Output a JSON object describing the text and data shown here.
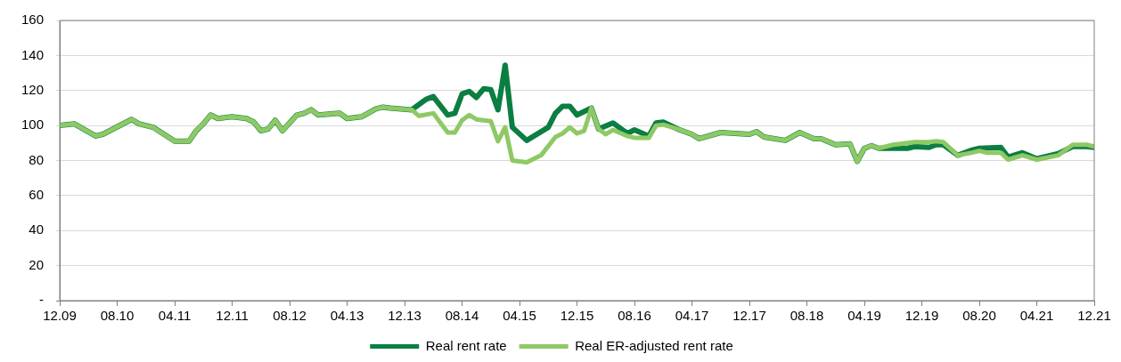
{
  "chart_data": {
    "type": "line",
    "xlim": [
      "2009-12",
      "2021-12"
    ],
    "xticks": [
      {
        "value": "2009-12",
        "label": "12.09"
      },
      {
        "value": "2010-08",
        "label": "08.10"
      },
      {
        "value": "2011-04",
        "label": "04.11"
      },
      {
        "value": "2011-12",
        "label": "12.11"
      },
      {
        "value": "2012-08",
        "label": "08.12"
      },
      {
        "value": "2013-04",
        "label": "04.13"
      },
      {
        "value": "2013-12",
        "label": "12.13"
      },
      {
        "value": "2014-08",
        "label": "08.14"
      },
      {
        "value": "2015-04",
        "label": "04.15"
      },
      {
        "value": "2015-12",
        "label": "12.15"
      },
      {
        "value": "2016-08",
        "label": "08.16"
      },
      {
        "value": "2017-04",
        "label": "04.17"
      },
      {
        "value": "2017-12",
        "label": "12.17"
      },
      {
        "value": "2018-08",
        "label": "08.18"
      },
      {
        "value": "2019-04",
        "label": "04.19"
      },
      {
        "value": "2019-12",
        "label": "12.19"
      },
      {
        "value": "2020-08",
        "label": "08.20"
      },
      {
        "value": "2021-04",
        "label": "04.21"
      },
      {
        "value": "2021-12",
        "label": "12.21"
      }
    ],
    "ylim": [
      0,
      160
    ],
    "yticks": [
      {
        "value": 0,
        "label": "-"
      },
      20,
      40,
      60,
      80,
      100,
      120,
      140,
      160
    ],
    "grid": "y",
    "legend": "bottom",
    "marker": "none",
    "line_style": "solid",
    "series": [
      {
        "name": "Real rent rate",
        "color": "#0b7e41",
        "x": [
          "2009-12",
          "2010-02",
          "2010-05",
          "2010-06",
          "2010-10",
          "2010-11",
          "2011-01",
          "2011-04",
          "2011-06",
          "2011-07",
          "2011-08",
          "2011-09",
          "2011-10",
          "2011-12",
          "2012-02",
          "2012-03",
          "2012-04",
          "2012-05",
          "2012-06",
          "2012-07",
          "2012-09",
          "2012-10",
          "2012-11",
          "2012-12",
          "2013-03",
          "2013-04",
          "2013-06",
          "2013-08",
          "2013-09",
          "2013-10",
          "2014-01",
          "2014-02",
          "2014-03",
          "2014-04",
          "2014-06",
          "2014-07",
          "2014-08",
          "2014-09",
          "2014-10",
          "2014-11",
          "2014-12",
          "2015-01",
          "2015-02",
          "2015-03",
          "2015-05",
          "2015-08",
          "2015-09",
          "2015-10",
          "2015-11",
          "2015-12",
          "2016-02",
          "2016-03",
          "2016-05",
          "2016-07",
          "2016-08",
          "2016-10",
          "2016-11",
          "2016-12",
          "2017-02",
          "2017-04",
          "2017-05",
          "2017-08",
          "2017-10",
          "2017-12",
          "2018-01",
          "2018-02",
          "2018-05",
          "2018-07",
          "2018-09",
          "2018-10",
          "2018-12",
          "2019-02",
          "2019-03",
          "2019-04",
          "2019-05",
          "2019-06",
          "2019-08",
          "2019-10",
          "2019-11",
          "2020-01",
          "2020-02",
          "2020-03",
          "2020-05",
          "2020-07",
          "2020-08",
          "2020-11",
          "2020-12",
          "2021-02",
          "2021-04",
          "2021-07",
          "2021-09",
          "2021-11",
          "2021-12"
        ],
        "values": [
          100,
          101,
          94,
          95,
          103.5,
          101,
          99,
          91,
          91,
          97,
          101,
          106,
          104,
          105,
          104,
          102,
          97,
          98,
          103,
          97,
          106,
          107,
          109,
          106,
          107,
          104,
          105,
          109.5,
          110.5,
          110,
          109,
          112,
          115,
          116.5,
          106,
          107,
          118,
          119.5,
          116,
          121,
          120.5,
          109,
          134.5,
          99,
          91.5,
          99,
          107,
          111,
          111,
          106,
          110,
          98,
          101.5,
          95.5,
          97.5,
          94,
          101.5,
          102,
          98,
          95,
          92.5,
          96,
          95.5,
          95,
          96.5,
          93.5,
          91.5,
          96,
          92.5,
          92.5,
          89,
          89.5,
          79.5,
          87,
          88.5,
          87,
          87,
          87,
          88,
          87.5,
          89,
          89,
          83,
          86,
          87,
          87.5,
          82,
          84.5,
          81,
          84,
          88,
          88,
          87.5
        ]
      },
      {
        "name": "Real ER-adjusted rent rate",
        "color": "#8ec965",
        "x": [
          "2009-12",
          "2010-02",
          "2010-05",
          "2010-06",
          "2010-10",
          "2010-11",
          "2011-01",
          "2011-04",
          "2011-06",
          "2011-07",
          "2011-08",
          "2011-09",
          "2011-10",
          "2011-12",
          "2012-02",
          "2012-03",
          "2012-04",
          "2012-05",
          "2012-06",
          "2012-07",
          "2012-09",
          "2012-10",
          "2012-11",
          "2012-12",
          "2013-03",
          "2013-04",
          "2013-06",
          "2013-08",
          "2013-09",
          "2013-10",
          "2014-01",
          "2014-02",
          "2014-04",
          "2014-06",
          "2014-07",
          "2014-08",
          "2014-09",
          "2014-10",
          "2014-12",
          "2015-01",
          "2015-02",
          "2015-03",
          "2015-05",
          "2015-07",
          "2015-09",
          "2015-10",
          "2015-11",
          "2015-12",
          "2016-01",
          "2016-02",
          "2016-03",
          "2016-04",
          "2016-05",
          "2016-07",
          "2016-08",
          "2016-10",
          "2016-11",
          "2016-12",
          "2017-02",
          "2017-04",
          "2017-05",
          "2017-08",
          "2017-10",
          "2017-12",
          "2018-01",
          "2018-02",
          "2018-05",
          "2018-07",
          "2018-09",
          "2018-10",
          "2018-12",
          "2019-02",
          "2019-03",
          "2019-04",
          "2019-05",
          "2019-06",
          "2019-08",
          "2019-10",
          "2019-11",
          "2020-01",
          "2020-02",
          "2020-03",
          "2020-05",
          "2020-07",
          "2020-08",
          "2020-09",
          "2020-11",
          "2020-12",
          "2021-02",
          "2021-04",
          "2021-07",
          "2021-09",
          "2021-11",
          "2021-12"
        ],
        "values": [
          100,
          101,
          94,
          95,
          103.5,
          101,
          99,
          91,
          91,
          97,
          101,
          106,
          104,
          105,
          104,
          102,
          97,
          98,
          103,
          97,
          106,
          107,
          109,
          106,
          107,
          104,
          105,
          109.5,
          110.5,
          110,
          109,
          105.5,
          107,
          96,
          96,
          103,
          106,
          103.5,
          102.5,
          91,
          99,
          80,
          79,
          83,
          93.5,
          95.5,
          99,
          95.5,
          97,
          110,
          98,
          95,
          97.5,
          94,
          93,
          93,
          100,
          100.5,
          98,
          95,
          92.5,
          96,
          95.5,
          95,
          96.5,
          93.5,
          91.5,
          96,
          92.5,
          92.5,
          89,
          89.5,
          79.5,
          87,
          88.5,
          87,
          89,
          90,
          90.5,
          90.5,
          91,
          90.5,
          83,
          84.5,
          85.5,
          84.5,
          84.5,
          80.5,
          83,
          80.5,
          83,
          89,
          89,
          88
        ]
      }
    ]
  }
}
